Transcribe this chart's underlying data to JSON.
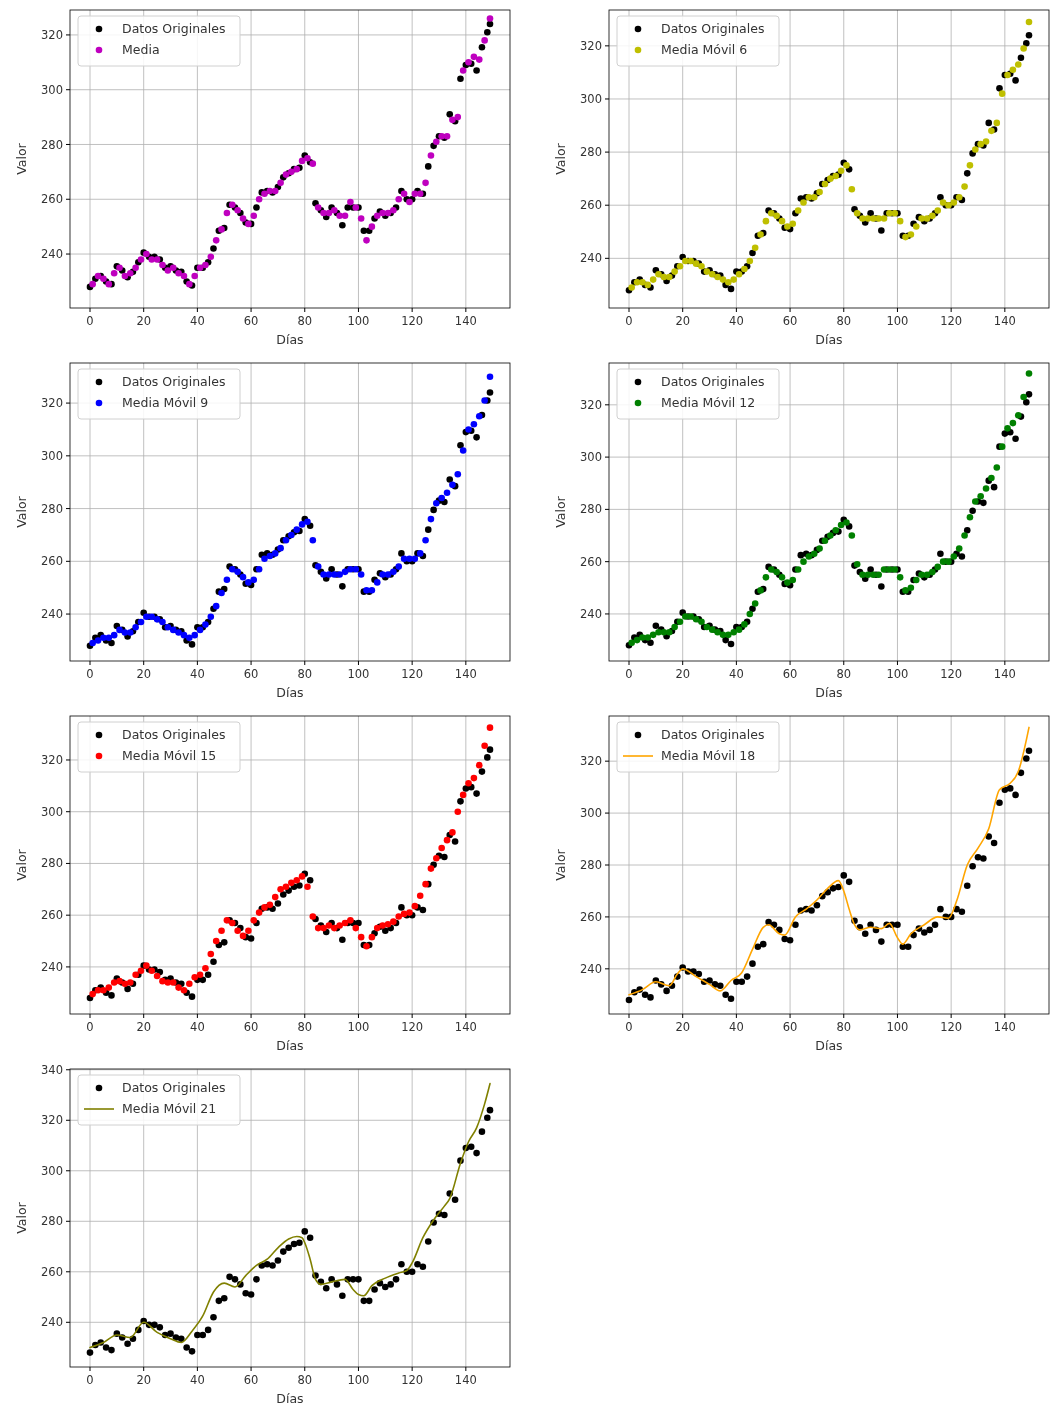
{
  "chart_data": [
    {
      "type": "scatter",
      "xlabel": "Días",
      "ylabel": "Valor",
      "xlim": [
        -7.45,
        156.45
      ],
      "ylim": [
        220.3,
        329.1
      ],
      "xticks": [
        0,
        20,
        40,
        60,
        80,
        100,
        120,
        140
      ],
      "yticks": [
        240,
        260,
        280,
        300,
        320
      ],
      "grid": true,
      "legend": "top left",
      "marker": "circle",
      "series": [
        {
          "name": "Datos Originales",
          "color": "#000000",
          "x": [
            0,
            2,
            4,
            6,
            8,
            10,
            12,
            14,
            16,
            18,
            20,
            22,
            24,
            26,
            28,
            30,
            32,
            34,
            36,
            38,
            40,
            42,
            44,
            46,
            48,
            50,
            52,
            54,
            56,
            58,
            60,
            62,
            64,
            66,
            68,
            70,
            72,
            74,
            76,
            78,
            80,
            82,
            84,
            86,
            88,
            90,
            92,
            94,
            96,
            98,
            100,
            102,
            104,
            106,
            108,
            110,
            112,
            114,
            116,
            118,
            120,
            122,
            124,
            126,
            128,
            130,
            132,
            134,
            136,
            138,
            140,
            142,
            144,
            146,
            148,
            149
          ],
          "values": [
            228,
            231,
            232,
            230,
            229,
            235.5,
            234,
            231.5,
            233.5,
            237,
            240.5,
            239,
            239,
            238,
            235,
            235.5,
            234,
            233.5,
            230,
            228.5,
            235,
            235,
            237,
            242,
            248.5,
            249.5,
            258,
            257,
            255,
            251.5,
            251,
            257,
            262.5,
            263,
            262.5,
            264.5,
            268,
            269.5,
            271,
            271.5,
            276,
            273.5,
            258.5,
            256,
            253.5,
            257,
            255,
            250.5,
            257,
            257,
            257,
            248.5,
            248.5,
            253,
            255.5,
            254,
            255,
            257,
            263,
            260,
            260,
            263,
            262,
            272,
            279.5,
            283,
            282.5,
            291,
            288.5,
            304,
            309,
            309.5,
            307,
            315.5,
            321,
            324
          ]
        },
        {
          "name": "Media",
          "color": "#bf00bf",
          "x": [
            1,
            3,
            5,
            7,
            9,
            11,
            13,
            15,
            17,
            19,
            21,
            23,
            25,
            27,
            29,
            31,
            33,
            35,
            37,
            39,
            41,
            43,
            45,
            47,
            49,
            51,
            53,
            55,
            57,
            59,
            61,
            63,
            65,
            67,
            69,
            71,
            73,
            75,
            77,
            79,
            81,
            83,
            85,
            87,
            89,
            91,
            93,
            95,
            97,
            99,
            101,
            103,
            105,
            107,
            109,
            111,
            113,
            115,
            117,
            119,
            121,
            123,
            125,
            127,
            129,
            131,
            133,
            135,
            137,
            139,
            141,
            143,
            145,
            147,
            149
          ],
          "values": [
            229,
            232,
            231,
            229,
            233,
            235,
            232,
            233,
            235,
            238,
            240,
            238,
            238,
            236,
            234,
            235,
            233,
            232,
            229,
            232,
            235,
            236,
            239,
            245,
            249,
            255,
            258,
            256,
            253,
            251,
            254,
            260,
            262,
            263,
            263,
            266,
            269,
            270,
            271,
            274,
            275,
            273,
            257,
            255,
            255,
            256,
            254,
            254,
            259,
            257,
            253,
            245,
            250,
            254,
            255,
            255,
            256,
            260,
            262,
            259,
            262,
            262,
            266,
            276,
            281,
            283,
            283,
            289,
            290,
            307,
            310,
            312,
            311,
            318,
            326
          ]
        }
      ]
    },
    {
      "type": "scatter",
      "xlabel": "Días",
      "ylabel": "Valor",
      "xlim": [
        -7.45,
        156.45
      ],
      "ylim": [
        221.3,
        333.5
      ],
      "xticks": [
        0,
        20,
        40,
        60,
        80,
        100,
        120,
        140
      ],
      "yticks": [
        240,
        260,
        280,
        300,
        320
      ],
      "grid": true,
      "legend": "top left",
      "marker": "circle",
      "series": [
        {
          "name": "Datos Originales",
          "color": "#000000",
          "x": [
            0,
            2,
            4,
            6,
            8,
            10,
            12,
            14,
            16,
            18,
            20,
            22,
            24,
            26,
            28,
            30,
            32,
            34,
            36,
            38,
            40,
            42,
            44,
            46,
            48,
            50,
            52,
            54,
            56,
            58,
            60,
            62,
            64,
            66,
            68,
            70,
            72,
            74,
            76,
            78,
            80,
            82,
            84,
            86,
            88,
            90,
            92,
            94,
            96,
            98,
            100,
            102,
            104,
            106,
            108,
            110,
            112,
            114,
            116,
            118,
            120,
            122,
            124,
            126,
            128,
            130,
            132,
            134,
            136,
            138,
            140,
            142,
            144,
            146,
            148,
            149
          ],
          "values": [
            228,
            231,
            232,
            230,
            229,
            235.5,
            234,
            231.5,
            233.5,
            237,
            240.5,
            239,
            239,
            238,
            235,
            235.5,
            234,
            233.5,
            230,
            228.5,
            235,
            235,
            237,
            242,
            248.5,
            249.5,
            258,
            257,
            255,
            251.5,
            251,
            257,
            262.5,
            263,
            262.5,
            264.5,
            268,
            269.5,
            271,
            271.5,
            276,
            273.5,
            258.5,
            256,
            253.5,
            257,
            255,
            250.5,
            257,
            257,
            257,
            248.5,
            248.5,
            253,
            255.5,
            254,
            255,
            257,
            263,
            260,
            260,
            263,
            262,
            272,
            279.5,
            283,
            282.5,
            291,
            288.5,
            304,
            309,
            309.5,
            307,
            315.5,
            321,
            324
          ]
        },
        {
          "name": "Media Móvil 6",
          "color": "#bfbf00",
          "x": [
            1,
            3,
            5,
            7,
            9,
            11,
            13,
            15,
            17,
            19,
            21,
            23,
            25,
            27,
            29,
            31,
            33,
            35,
            37,
            39,
            41,
            43,
            45,
            47,
            49,
            51,
            53,
            55,
            57,
            59,
            61,
            63,
            65,
            67,
            69,
            71,
            73,
            75,
            77,
            79,
            81,
            83,
            85,
            87,
            89,
            91,
            93,
            95,
            97,
            99,
            101,
            103,
            105,
            107,
            109,
            111,
            113,
            115,
            117,
            119,
            121,
            123,
            125,
            127,
            129,
            131,
            133,
            135,
            137,
            139,
            141,
            143,
            145,
            147,
            149
          ],
          "values": [
            229,
            231,
            231,
            230,
            232,
            234,
            233,
            233,
            235,
            237,
            239,
            239,
            238,
            237,
            235,
            234,
            233,
            232,
            231,
            232,
            234,
            236,
            239,
            244,
            249,
            254,
            257,
            256,
            254,
            252,
            253,
            258,
            261,
            263,
            263,
            265,
            268,
            270,
            271,
            273,
            275,
            266,
            257,
            255,
            255,
            255,
            255,
            255,
            257,
            257,
            254,
            248,
            249,
            252,
            255,
            255,
            256,
            258,
            261,
            260,
            261,
            263,
            267,
            275,
            281,
            283,
            284,
            288,
            291,
            302,
            309,
            311,
            313,
            319,
            329
          ]
        }
      ]
    },
    {
      "type": "scatter",
      "xlabel": "Días",
      "ylabel": "Valor",
      "xlim": [
        -7.45,
        156.45
      ],
      "ylim": [
        222.2,
        335.2
      ],
      "xticks": [
        0,
        20,
        40,
        60,
        80,
        100,
        120,
        140
      ],
      "yticks": [
        240,
        260,
        280,
        300,
        320
      ],
      "grid": true,
      "legend": "top left",
      "marker": "circle",
      "series": [
        {
          "name": "Datos Originales",
          "color": "#000000",
          "x": [
            0,
            2,
            4,
            6,
            8,
            10,
            12,
            14,
            16,
            18,
            20,
            22,
            24,
            26,
            28,
            30,
            32,
            34,
            36,
            38,
            40,
            42,
            44,
            46,
            48,
            50,
            52,
            54,
            56,
            58,
            60,
            62,
            64,
            66,
            68,
            70,
            72,
            74,
            76,
            78,
            80,
            82,
            84,
            86,
            88,
            90,
            92,
            94,
            96,
            98,
            100,
            102,
            104,
            106,
            108,
            110,
            112,
            114,
            116,
            118,
            120,
            122,
            124,
            126,
            128,
            130,
            132,
            134,
            136,
            138,
            140,
            142,
            144,
            146,
            148,
            149
          ],
          "values": [
            228,
            231,
            232,
            230,
            229,
            235.5,
            234,
            231.5,
            233.5,
            237,
            240.5,
            239,
            239,
            238,
            235,
            235.5,
            234,
            233.5,
            230,
            228.5,
            235,
            235,
            237,
            242,
            248.5,
            249.5,
            258,
            257,
            255,
            251.5,
            251,
            257,
            262.5,
            263,
            262.5,
            264.5,
            268,
            269.5,
            271,
            271.5,
            276,
            273.5,
            258.5,
            256,
            253.5,
            257,
            255,
            250.5,
            257,
            257,
            257,
            248.5,
            248.5,
            253,
            255.5,
            254,
            255,
            257,
            263,
            260,
            260,
            263,
            262,
            272,
            279.5,
            283,
            282.5,
            291,
            288.5,
            304,
            309,
            309.5,
            307,
            315.5,
            321,
            324
          ]
        },
        {
          "name": "Media Móvil 9",
          "color": "#0000ff",
          "x": [
            1,
            3,
            5,
            7,
            9,
            11,
            13,
            15,
            17,
            19,
            21,
            23,
            25,
            27,
            29,
            31,
            33,
            35,
            37,
            39,
            41,
            43,
            45,
            47,
            49,
            51,
            53,
            55,
            57,
            59,
            61,
            63,
            65,
            67,
            69,
            71,
            73,
            75,
            77,
            79,
            81,
            83,
            85,
            87,
            89,
            91,
            93,
            95,
            97,
            99,
            101,
            103,
            105,
            107,
            109,
            111,
            113,
            115,
            117,
            119,
            121,
            123,
            125,
            127,
            129,
            131,
            133,
            135,
            137,
            139,
            141,
            143,
            145,
            147,
            149
          ],
          "values": [
            229,
            230,
            231,
            231,
            232,
            234,
            233,
            233,
            235,
            237,
            239,
            239,
            238,
            237,
            235,
            234,
            233,
            232,
            231,
            232,
            234,
            236,
            239,
            243,
            248,
            253,
            257,
            256,
            254,
            252,
            253,
            257,
            261,
            262,
            263,
            265,
            268,
            270,
            272,
            274,
            275,
            268,
            258,
            255,
            255,
            255,
            255,
            256,
            257,
            257,
            255,
            249,
            249,
            252,
            255,
            255,
            256,
            258,
            261,
            261,
            261,
            263,
            268,
            276,
            282,
            284,
            286,
            289,
            293,
            302,
            310,
            312,
            315,
            321,
            330
          ]
        }
      ]
    },
    {
      "type": "scatter",
      "xlabel": "Días",
      "ylabel": "Valor",
      "xlim": [
        -7.45,
        156.45
      ],
      "ylim": [
        222,
        336
      ],
      "xticks": [
        0,
        20,
        40,
        60,
        80,
        100,
        120,
        140
      ],
      "yticks": [
        240,
        260,
        280,
        300,
        320
      ],
      "grid": true,
      "legend": "top left",
      "marker": "circle",
      "series": [
        {
          "name": "Datos Originales",
          "color": "#000000",
          "x": [
            0,
            2,
            4,
            6,
            8,
            10,
            12,
            14,
            16,
            18,
            20,
            22,
            24,
            26,
            28,
            30,
            32,
            34,
            36,
            38,
            40,
            42,
            44,
            46,
            48,
            50,
            52,
            54,
            56,
            58,
            60,
            62,
            64,
            66,
            68,
            70,
            72,
            74,
            76,
            78,
            80,
            82,
            84,
            86,
            88,
            90,
            92,
            94,
            96,
            98,
            100,
            102,
            104,
            106,
            108,
            110,
            112,
            114,
            116,
            118,
            120,
            122,
            124,
            126,
            128,
            130,
            132,
            134,
            136,
            138,
            140,
            142,
            144,
            146,
            148,
            149
          ],
          "values": [
            228,
            231,
            232,
            230,
            229,
            235.5,
            234,
            231.5,
            233.5,
            237,
            240.5,
            239,
            239,
            238,
            235,
            235.5,
            234,
            233.5,
            230,
            228.5,
            235,
            235,
            237,
            242,
            248.5,
            249.5,
            258,
            257,
            255,
            251.5,
            251,
            257,
            262.5,
            263,
            262.5,
            264.5,
            268,
            269.5,
            271,
            271.5,
            276,
            273.5,
            258.5,
            256,
            253.5,
            257,
            255,
            250.5,
            257,
            257,
            257,
            248.5,
            248.5,
            253,
            255.5,
            254,
            255,
            257,
            263,
            260,
            260,
            263,
            262,
            272,
            279.5,
            283,
            282.5,
            291,
            288.5,
            304,
            309,
            309.5,
            307,
            315.5,
            321,
            324
          ]
        },
        {
          "name": "Media Móvil 12",
          "color": "#008000",
          "x": [
            1,
            3,
            5,
            7,
            9,
            11,
            13,
            15,
            17,
            19,
            21,
            23,
            25,
            27,
            29,
            31,
            33,
            35,
            37,
            39,
            41,
            43,
            45,
            47,
            49,
            51,
            53,
            55,
            57,
            59,
            61,
            63,
            65,
            67,
            69,
            71,
            73,
            75,
            77,
            79,
            81,
            83,
            85,
            87,
            89,
            91,
            93,
            95,
            97,
            99,
            101,
            103,
            105,
            107,
            109,
            111,
            113,
            115,
            117,
            119,
            121,
            123,
            125,
            127,
            129,
            131,
            133,
            135,
            137,
            139,
            141,
            143,
            145,
            147,
            149
          ],
          "values": [
            229,
            230,
            231,
            231,
            232,
            233,
            233,
            233,
            235,
            237,
            239,
            239,
            238,
            237,
            235,
            234,
            233,
            232,
            232,
            233,
            234,
            236,
            240,
            244,
            249,
            254,
            257,
            256,
            254,
            252,
            253,
            257,
            260,
            262,
            263,
            265,
            268,
            270,
            272,
            274,
            275,
            270,
            259,
            255,
            255,
            255,
            255,
            257,
            257,
            257,
            254,
            249,
            250,
            253,
            255,
            255,
            256,
            258,
            260,
            260,
            262,
            265,
            270,
            277,
            283,
            285,
            288,
            292,
            296,
            304,
            311,
            313,
            316,
            323,
            332
          ]
        }
      ]
    },
    {
      "type": "scatter",
      "xlabel": "Días",
      "ylabel": "Valor",
      "xlim": [
        -7.45,
        156.45
      ],
      "ylim": [
        221.8,
        337
      ],
      "xticks": [
        0,
        20,
        40,
        60,
        80,
        100,
        120,
        140
      ],
      "yticks": [
        240,
        260,
        280,
        300,
        320
      ],
      "grid": true,
      "legend": "top left",
      "marker": "circle",
      "series": [
        {
          "name": "Datos Originales",
          "color": "#000000",
          "x": [
            0,
            2,
            4,
            6,
            8,
            10,
            12,
            14,
            16,
            18,
            20,
            22,
            24,
            26,
            28,
            30,
            32,
            34,
            36,
            38,
            40,
            42,
            44,
            46,
            48,
            50,
            52,
            54,
            56,
            58,
            60,
            62,
            64,
            66,
            68,
            70,
            72,
            74,
            76,
            78,
            80,
            82,
            84,
            86,
            88,
            90,
            92,
            94,
            96,
            98,
            100,
            102,
            104,
            106,
            108,
            110,
            112,
            114,
            116,
            118,
            120,
            122,
            124,
            126,
            128,
            130,
            132,
            134,
            136,
            138,
            140,
            142,
            144,
            146,
            148,
            149
          ],
          "values": [
            228,
            231,
            232,
            230,
            229,
            235.5,
            234,
            231.5,
            233.5,
            237,
            240.5,
            239,
            239,
            238,
            235,
            235.5,
            234,
            233.5,
            230,
            228.5,
            235,
            235,
            237,
            242,
            248.5,
            249.5,
            258,
            257,
            255,
            251.5,
            251,
            257,
            262.5,
            263,
            262.5,
            264.5,
            268,
            269.5,
            271,
            271.5,
            276,
            273.5,
            258.5,
            256,
            253.5,
            257,
            255,
            250.5,
            257,
            257,
            257,
            248.5,
            248.5,
            253,
            255.5,
            254,
            255,
            257,
            263,
            260,
            260,
            263,
            262,
            272,
            279.5,
            283,
            282.5,
            291,
            288.5,
            304,
            309,
            309.5,
            307,
            315.5,
            321,
            324
          ]
        },
        {
          "name": "Media Móvil 15",
          "color": "#ff0000",
          "x": [
            1,
            3,
            5,
            7,
            9,
            11,
            13,
            15,
            17,
            19,
            21,
            23,
            25,
            27,
            29,
            31,
            33,
            35,
            37,
            39,
            41,
            43,
            45,
            47,
            49,
            51,
            53,
            55,
            57,
            59,
            61,
            63,
            65,
            67,
            69,
            71,
            73,
            75,
            77,
            79,
            81,
            83,
            85,
            87,
            89,
            91,
            93,
            95,
            97,
            99,
            101,
            103,
            105,
            107,
            109,
            111,
            113,
            115,
            117,
            119,
            121,
            123,
            125,
            127,
            129,
            131,
            133,
            135,
            137,
            139,
            141,
            143,
            145,
            147,
            149
          ],
          "values": [
            229.5,
            231,
            231,
            232,
            234,
            234.5,
            233.5,
            234,
            237,
            238.5,
            240.5,
            238.5,
            236.5,
            234.5,
            234,
            234,
            232,
            231,
            233.5,
            236,
            237,
            239.5,
            245,
            250,
            254,
            258,
            257,
            254,
            252,
            254,
            258,
            261,
            263,
            264,
            267,
            270,
            271,
            272.5,
            273.5,
            275,
            271,
            259.5,
            255,
            255,
            256,
            255,
            256,
            257,
            258,
            255,
            251.5,
            248,
            251.5,
            255,
            256,
            256.5,
            257.5,
            259.5,
            260.5,
            261,
            263.5,
            267.5,
            272,
            278,
            282,
            286,
            289,
            292,
            300,
            306.5,
            311,
            313,
            318,
            325.5,
            332.5
          ]
        }
      ]
    },
    {
      "type": "scatter",
      "xlabel": "Días",
      "ylabel": "Valor",
      "xlim": [
        -7.45,
        156.45
      ],
      "ylim": [
        222.6,
        337.4
      ],
      "xticks": [
        0,
        20,
        40,
        60,
        80,
        100,
        120,
        140
      ],
      "yticks": [
        240,
        260,
        280,
        300,
        320
      ],
      "grid": true,
      "legend": "top left",
      "marker": "circle",
      "series": [
        {
          "name": "Datos Originales",
          "color": "#000000",
          "x": [
            0,
            2,
            4,
            6,
            8,
            10,
            12,
            14,
            16,
            18,
            20,
            22,
            24,
            26,
            28,
            30,
            32,
            34,
            36,
            38,
            40,
            42,
            44,
            46,
            48,
            50,
            52,
            54,
            56,
            58,
            60,
            62,
            64,
            66,
            68,
            70,
            72,
            74,
            76,
            78,
            80,
            82,
            84,
            86,
            88,
            90,
            92,
            94,
            96,
            98,
            100,
            102,
            104,
            106,
            108,
            110,
            112,
            114,
            116,
            118,
            120,
            122,
            124,
            126,
            128,
            130,
            132,
            134,
            136,
            138,
            140,
            142,
            144,
            146,
            148,
            149
          ],
          "values": [
            228,
            231,
            232,
            230,
            229,
            235.5,
            234,
            231.5,
            233.5,
            237,
            240.5,
            239,
            239,
            238,
            235,
            235.5,
            234,
            233.5,
            230,
            228.5,
            235,
            235,
            237,
            242,
            248.5,
            249.5,
            258,
            257,
            255,
            251.5,
            251,
            257,
            262.5,
            263,
            262.5,
            264.5,
            268,
            269.5,
            271,
            271.5,
            276,
            273.5,
            258.5,
            256,
            253.5,
            257,
            255,
            250.5,
            257,
            257,
            257,
            248.5,
            248.5,
            253,
            255.5,
            254,
            255,
            257,
            263,
            260,
            260,
            263,
            262,
            272,
            279.5,
            283,
            282.5,
            291,
            288.5,
            304,
            309,
            309.5,
            307,
            315.5,
            321,
            324
          ]
        },
        {
          "name": "Media Móvil 18",
          "color": "#ffa500",
          "type": "line",
          "marker": "none",
          "x": [
            0,
            5,
            10,
            15,
            18,
            20,
            25,
            30,
            34,
            38,
            42,
            46,
            50,
            52,
            56,
            58,
            62,
            66,
            70,
            74,
            78,
            80,
            82,
            84,
            86,
            90,
            94,
            97,
            100,
            102,
            105,
            110,
            115,
            119,
            122,
            126,
            130,
            134,
            138,
            142,
            145,
            149
          ],
          "values": [
            230,
            232,
            235,
            233.5,
            238,
            240,
            237,
            234,
            231.5,
            235.5,
            238.5,
            247.5,
            256,
            257,
            253.5,
            253,
            260,
            263,
            266.5,
            271,
            274,
            270,
            263,
            257,
            255,
            256,
            255.5,
            257.5,
            252,
            249.5,
            253.5,
            257,
            260,
            259.5,
            266,
            280,
            286.5,
            294,
            309,
            311.5,
            316,
            333
          ]
        }
      ]
    },
    {
      "type": "scatter",
      "xlabel": "Días",
      "ylabel": "Valor",
      "xlim": [
        -7.45,
        156.45
      ],
      "ylim": [
        222.3,
        340.3
      ],
      "xticks": [
        0,
        20,
        40,
        60,
        80,
        100,
        120,
        140
      ],
      "yticks": [
        240,
        260,
        280,
        300,
        320,
        340
      ],
      "grid": true,
      "legend": "top left",
      "marker": "circle",
      "series": [
        {
          "name": "Datos Originales",
          "color": "#000000",
          "x": [
            0,
            2,
            4,
            6,
            8,
            10,
            12,
            14,
            16,
            18,
            20,
            22,
            24,
            26,
            28,
            30,
            32,
            34,
            36,
            38,
            40,
            42,
            44,
            46,
            48,
            50,
            52,
            54,
            56,
            58,
            60,
            62,
            64,
            66,
            68,
            70,
            72,
            74,
            76,
            78,
            80,
            82,
            84,
            86,
            88,
            90,
            92,
            94,
            96,
            98,
            100,
            102,
            104,
            106,
            108,
            110,
            112,
            114,
            116,
            118,
            120,
            122,
            124,
            126,
            128,
            130,
            132,
            134,
            136,
            138,
            140,
            142,
            144,
            146,
            148,
            149
          ],
          "values": [
            228,
            231,
            232,
            230,
            229,
            235.5,
            234,
            231.5,
            233.5,
            237,
            240.5,
            239,
            239,
            238,
            235,
            235.5,
            234,
            233.5,
            230,
            228.5,
            235,
            235,
            237,
            242,
            248.5,
            249.5,
            258,
            257,
            255,
            251.5,
            251,
            257,
            262.5,
            263,
            262.5,
            264.5,
            268,
            269.5,
            271,
            271.5,
            276,
            273.5,
            258.5,
            256,
            253.5,
            257,
            255,
            250.5,
            257,
            257,
            257,
            248.5,
            248.5,
            253,
            255.5,
            254,
            255,
            257,
            263,
            260,
            260,
            263,
            262,
            272,
            279.5,
            283,
            282.5,
            291,
            288.5,
            304,
            309,
            309.5,
            307,
            315.5,
            321,
            324
          ]
        },
        {
          "name": "Media Móvil 21",
          "color": "#808000",
          "type": "line",
          "marker": "none",
          "x": [
            0,
            5,
            10,
            15,
            20,
            25,
            30,
            34,
            38,
            42,
            46,
            50,
            54,
            58,
            62,
            66,
            70,
            74,
            77,
            79,
            80,
            82,
            84,
            86,
            90,
            95,
            98,
            100,
            102,
            105,
            110,
            115,
            118,
            120,
            124,
            128,
            132,
            134,
            138,
            141,
            144,
            147,
            149
          ],
          "values": [
            230,
            232,
            235,
            234,
            240,
            236,
            233.5,
            232,
            236.5,
            242.5,
            252,
            255.5,
            254,
            258.5,
            262.5,
            265,
            269.5,
            273,
            274,
            273.5,
            271.5,
            265,
            257,
            255,
            256,
            257,
            253,
            251,
            250.5,
            254.5,
            257.5,
            259.5,
            260.5,
            263.5,
            273.5,
            280.5,
            286,
            289,
            303,
            311.5,
            317,
            326.5,
            334.5
          ]
        }
      ]
    }
  ]
}
